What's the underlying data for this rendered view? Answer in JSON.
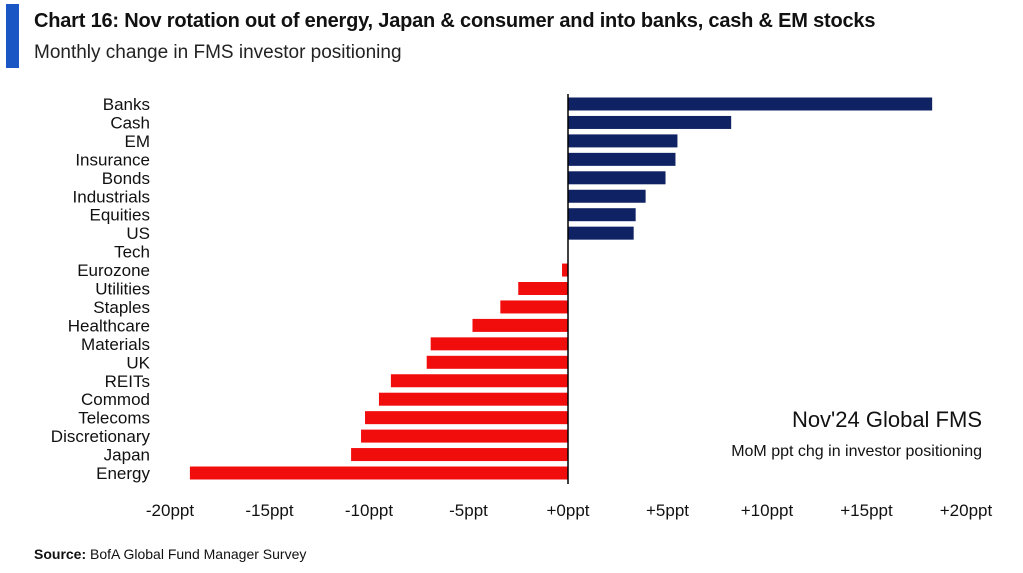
{
  "header": {
    "title": "Chart 16: Nov rotation out of energy, Japan & consumer and into banks, cash & EM stocks",
    "subtitle": "Monthly change in FMS investor positioning"
  },
  "footer": {
    "source_label": "Source:",
    "source_text": "BofA Global Fund Manager Survey"
  },
  "colors": {
    "positive": "#0f2263",
    "negative": "#f20d0d",
    "accent": "#1a56c4"
  },
  "chart_data": {
    "type": "bar",
    "orientation": "horizontal",
    "title": "Chart 16: Nov rotation out of energy, Japan & consumer and into banks, cash & EM stocks",
    "subtitle": "Monthly change in FMS investor positioning",
    "categories": [
      "Banks",
      "Cash",
      "EM",
      "Insurance",
      "Bonds",
      "Industrials",
      "Equities",
      "US",
      "Tech",
      "Eurozone",
      "Utilities",
      "Staples",
      "Healthcare",
      "Materials",
      "UK",
      "REITs",
      "Commod",
      "Telecoms",
      "Discretionary",
      "Japan",
      "Energy"
    ],
    "values": [
      18.3,
      8.2,
      5.5,
      5.4,
      4.9,
      3.9,
      3.4,
      3.3,
      0,
      -0.3,
      -2.5,
      -3.4,
      -4.8,
      -6.9,
      -7.1,
      -8.9,
      -9.5,
      -10.2,
      -10.4,
      -10.9,
      -19
    ],
    "xlim": [
      -20,
      20
    ],
    "xticks": [
      -20,
      -15,
      -10,
      -5,
      0,
      5,
      10,
      15,
      20
    ],
    "xtick_labels": [
      "-20ppt",
      "-15ppt",
      "-10ppt",
      "-5ppt",
      "+0ppt",
      "+5ppt",
      "+10ppt",
      "+15ppt",
      "+20ppt"
    ],
    "xlabel": "",
    "ylabel": "",
    "grid": false,
    "annotation": {
      "title": "Nov'24 Global FMS",
      "subtitle": "MoM ppt chg in investor positioning"
    }
  }
}
